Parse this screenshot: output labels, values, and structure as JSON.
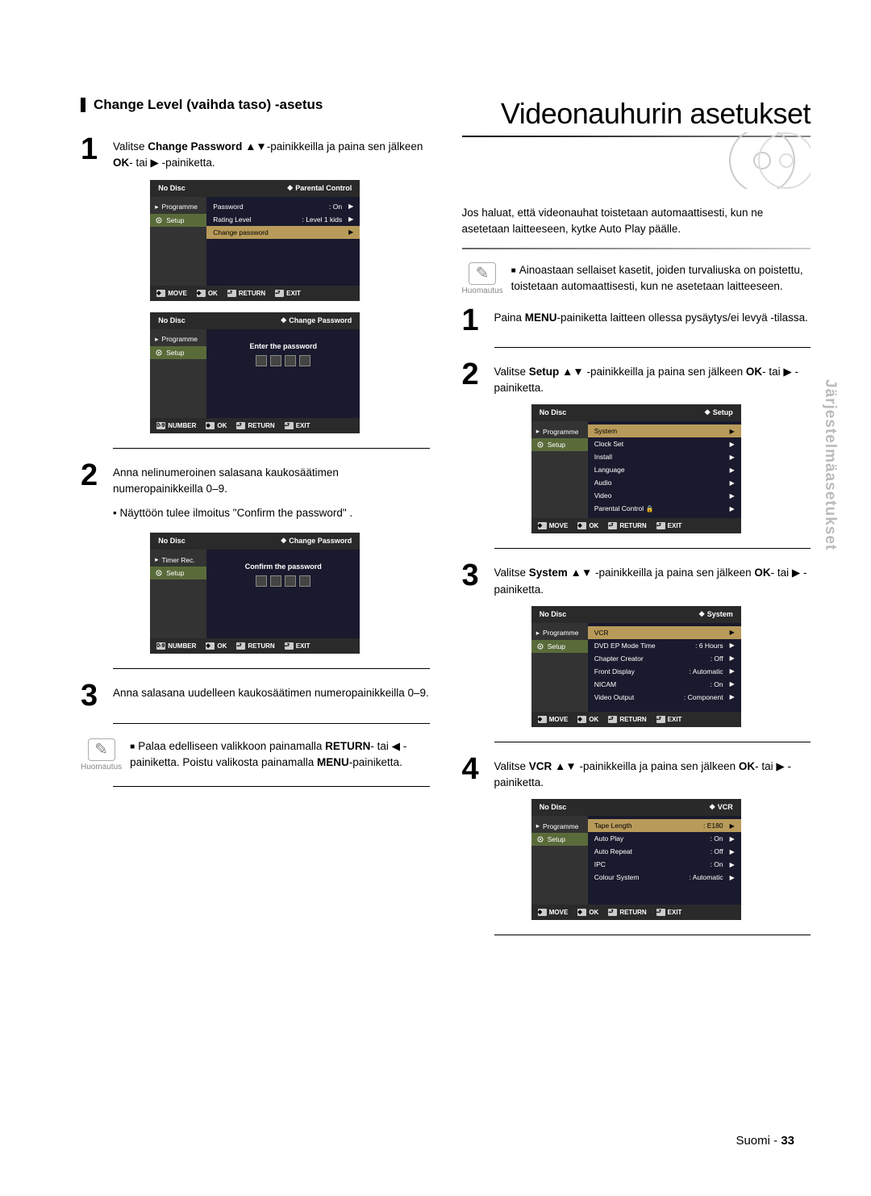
{
  "side_tab": "Järjestelmäasetukset",
  "page_lang": "Suomi",
  "page_num": "33",
  "left": {
    "section_title": "Change Level (vaihda taso) -asetus",
    "step1": "Valitse <b>Change Password ▲▼</b>-painikkeilla ja paina sen jälkeen <b>OK</b>- tai ▶ -painiketta.",
    "step2": "Anna nelinumeroinen salasana kaukosäätimen numeropainikkeilla 0–9.",
    "step2_bullet": "• Näyttöön tulee ilmoitus \"Confirm the password\" .",
    "step3": "Anna salasana uudelleen kaukosäätimen numeropainikkeilla 0–9.",
    "note": "Palaa edelliseen valikkoon painamalla <b>RETURN</b>- tai ◀ -painiketta. Poistu valikosta painamalla <b>MENU</b>-painiketta.",
    "note_label": "Huomautus",
    "osd1": {
      "status": "No Disc",
      "crumb": "Parental Control",
      "side": [
        "Programme",
        "Setup"
      ],
      "rows": [
        {
          "lbl": "Password",
          "val": ": On",
          "hl": false
        },
        {
          "lbl": "Rating Level",
          "val": ": Level 1 kids",
          "hl": false
        },
        {
          "lbl": "Change password",
          "val": "",
          "hl": true
        }
      ],
      "foot": [
        "MOVE",
        "OK",
        "RETURN",
        "EXIT"
      ]
    },
    "osd2": {
      "status": "No Disc",
      "crumb": "Change Password",
      "side": [
        "Programme",
        "Setup"
      ],
      "centered": "Enter the password",
      "foot": [
        "NUMBER",
        "OK",
        "RETURN",
        "EXIT"
      ]
    },
    "osd3": {
      "status": "No Disc",
      "crumb": "Change Password",
      "side": [
        "Timer Rec.",
        "Setup"
      ],
      "centered": "Confirm the password",
      "foot": [
        "NUMBER",
        "OK",
        "RETURN",
        "EXIT"
      ]
    }
  },
  "right": {
    "title": "Videonauhurin asetukset",
    "intro": "Jos haluat, että videonauhat toistetaan automaattisesti, kun ne asetetaan laitteeseen, kytke Auto Play päälle.",
    "note_label": "Huomautus",
    "note": "Ainoastaan sellaiset kasetit, joiden turvaliuska on poistettu, toistetaan automaattisesti, kun ne asetetaan laitteeseen.",
    "step1": "Paina <b>MENU</b>-painiketta laitteen ollessa pysäytys/ei levyä -tilassa.",
    "step2": "Valitse <b>Setup ▲▼</b> -painikkeilla ja paina sen jälkeen <b>OK</b>- tai ▶ -painiketta.",
    "step3": "Valitse <b>System ▲▼</b> -painikkeilla ja paina sen jälkeen <b>OK</b>- tai ▶ -painiketta.",
    "step4": "Valitse <b>VCR ▲▼</b> -painikkeilla ja paina sen jälkeen <b>OK</b>- tai ▶ -painiketta.",
    "osd_setup": {
      "status": "No Disc",
      "crumb": "Setup",
      "side": [
        "Programme",
        "Setup"
      ],
      "rows": [
        {
          "lbl": "System",
          "val": "",
          "hl": true
        },
        {
          "lbl": "Clock Set",
          "val": "",
          "hl": false
        },
        {
          "lbl": "Install",
          "val": "",
          "hl": false
        },
        {
          "lbl": "Language",
          "val": "",
          "hl": false
        },
        {
          "lbl": "Audio",
          "val": "",
          "hl": false
        },
        {
          "lbl": "Video",
          "val": "",
          "hl": false
        },
        {
          "lbl": "Parental Control",
          "val": "",
          "hl": false,
          "lock": true
        }
      ],
      "foot": [
        "MOVE",
        "OK",
        "RETURN",
        "EXIT"
      ]
    },
    "osd_system": {
      "status": "No Disc",
      "crumb": "System",
      "side": [
        "Programme",
        "Setup"
      ],
      "rows": [
        {
          "lbl": "VCR",
          "val": "",
          "hl": true
        },
        {
          "lbl": "DVD EP Mode Time",
          "val": ": 6 Hours",
          "hl": false
        },
        {
          "lbl": "Chapter Creator",
          "val": ": Off",
          "hl": false
        },
        {
          "lbl": "Front Display",
          "val": ": Automatic",
          "hl": false
        },
        {
          "lbl": "NICAM",
          "val": ": On",
          "hl": false
        },
        {
          "lbl": "Video Output",
          "val": ": Component",
          "hl": false
        }
      ],
      "foot": [
        "MOVE",
        "OK",
        "RETURN",
        "EXIT"
      ]
    },
    "osd_vcr": {
      "status": "No Disc",
      "crumb": "VCR",
      "side": [
        "Programme",
        "Setup"
      ],
      "rows": [
        {
          "lbl": "Tape Length",
          "val": ": E180",
          "hl": true
        },
        {
          "lbl": "Auto Play",
          "val": ": On",
          "hl": false
        },
        {
          "lbl": "Auto Repeat",
          "val": ": Off",
          "hl": false
        },
        {
          "lbl": "IPC",
          "val": ": On",
          "hl": false
        },
        {
          "lbl": "Colour System",
          "val": ": Automatic",
          "hl": false
        }
      ],
      "foot": [
        "MOVE",
        "OK",
        "RETURN",
        "EXIT"
      ]
    }
  }
}
